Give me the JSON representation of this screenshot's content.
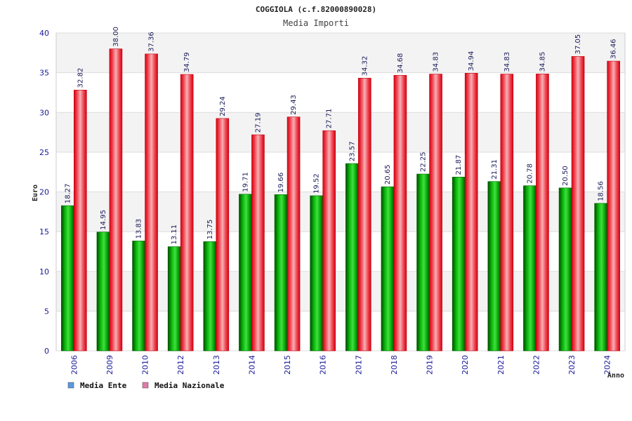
{
  "chart_data": {
    "type": "bar",
    "title": "COGGIOLA (c.f.82000890028)",
    "subtitle": "Media Importi",
    "xlabel": "Anno",
    "ylabel": "Euro",
    "ylim": [
      0,
      40
    ],
    "yticks": [
      0,
      5,
      10,
      15,
      20,
      25,
      30,
      35,
      40
    ],
    "categories": [
      "2006",
      "2009",
      "2010",
      "2012",
      "2013",
      "2014",
      "2015",
      "2016",
      "2017",
      "2018",
      "2019",
      "2020",
      "2021",
      "2022",
      "2023",
      "2024"
    ],
    "series": [
      {
        "name": "Media Ente",
        "legend_color": "#5b9ae0",
        "bar_color": "#0aaa0a",
        "values": [
          18.27,
          14.95,
          13.83,
          13.11,
          13.75,
          19.71,
          19.66,
          19.52,
          23.57,
          20.65,
          22.25,
          21.87,
          21.31,
          20.78,
          20.5,
          18.56
        ],
        "labels": [
          "18.27",
          "14.95",
          "13.83",
          "13.11",
          "13.75",
          "19.71",
          "19.66",
          "19.52",
          "23.57",
          "20.65",
          "22.25",
          "21.87",
          "21.31",
          "20.78",
          "20.50",
          "18.56"
        ]
      },
      {
        "name": "Media Nazionale",
        "legend_color": "#e07aa8",
        "bar_color": "#e8101a",
        "values": [
          32.82,
          38.0,
          37.36,
          34.79,
          29.24,
          27.19,
          29.43,
          27.71,
          34.32,
          34.68,
          34.83,
          34.94,
          34.83,
          34.85,
          37.05,
          36.46
        ],
        "labels": [
          "32.82",
          "38.00",
          "37.36",
          "34.79",
          "29.24",
          "27.19",
          "29.43",
          "27.71",
          "34.32",
          "34.68",
          "34.83",
          "34.94",
          "34.83",
          "34.85",
          "37.05",
          "36.46"
        ]
      }
    ],
    "grid": true,
    "legend_position": "bottom-left"
  }
}
